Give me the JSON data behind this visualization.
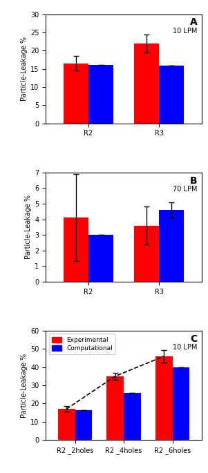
{
  "panel_A": {
    "label": "A",
    "title": "10 LPM",
    "categories": [
      "R2",
      "R3"
    ],
    "exp_values": [
      16.5,
      22.0
    ],
    "comp_values": [
      16.0,
      15.8
    ],
    "exp_errors": [
      2.0,
      2.5
    ],
    "comp_errors": [
      0.0,
      0.0
    ],
    "ylim": [
      0,
      30
    ],
    "yticks": [
      0,
      5,
      10,
      15,
      20,
      25,
      30
    ]
  },
  "panel_B": {
    "label": "B",
    "title": "70 LPM",
    "categories": [
      "R2",
      "R3"
    ],
    "exp_values": [
      4.1,
      3.6
    ],
    "comp_values": [
      3.0,
      4.6
    ],
    "exp_errors": [
      2.8,
      1.2
    ],
    "comp_errors": [
      0.0,
      0.5
    ],
    "ylim": [
      0,
      7
    ],
    "yticks": [
      0,
      1,
      2,
      3,
      4,
      5,
      6,
      7
    ]
  },
  "panel_C": {
    "label": "C",
    "title": "10 LPM",
    "categories": [
      "R2 _2holes",
      "R2 _4holes",
      "R2 _6holes"
    ],
    "exp_values": [
      17.0,
      35.0,
      46.0
    ],
    "comp_values": [
      16.5,
      26.0,
      40.0
    ],
    "exp_errors": [
      1.5,
      2.0,
      3.5
    ],
    "comp_errors": [
      0.0,
      0.0,
      0.0
    ],
    "ylim": [
      0,
      60
    ],
    "yticks": [
      0,
      10,
      20,
      30,
      40,
      50,
      60
    ],
    "dashed_line_x": [
      0,
      1,
      2
    ],
    "dashed_line_y": [
      17.0,
      35.0,
      46.0
    ]
  },
  "colors": {
    "exp": "#FF0000",
    "comp": "#0000FF"
  },
  "ylabel": "Particle-Leakage %",
  "bar_width": 0.35,
  "legend_labels": [
    "Experimental",
    "Computational"
  ]
}
